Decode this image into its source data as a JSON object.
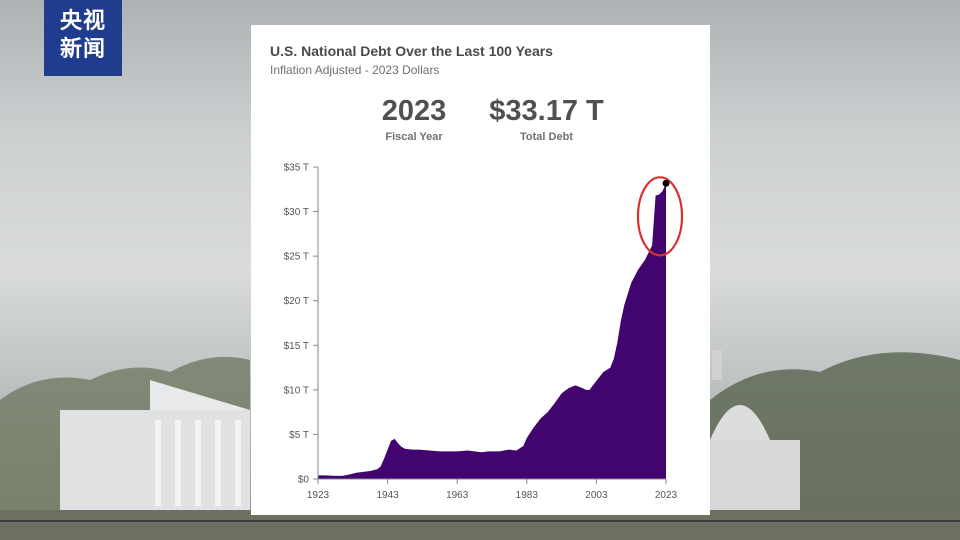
{
  "logo": {
    "line1": "央视",
    "line2": "新闻"
  },
  "card": {
    "title": "U.S. National Debt Over the Last 100 Years",
    "subtitle": "Inflation Adjusted - 2023 Dollars",
    "stats": [
      {
        "value": "2023",
        "label": "Fiscal Year"
      },
      {
        "value": "$33.17 T",
        "label": "Total Debt"
      }
    ]
  },
  "colors": {
    "area": "#42046e",
    "highlight": "#d93030",
    "logo_bg": "#1f3c8f"
  },
  "chart_data": {
    "type": "area",
    "title": "U.S. National Debt Over the Last 100 Years",
    "subtitle": "Inflation Adjusted - 2023 Dollars",
    "xlabel": "",
    "ylabel": "",
    "xlim": [
      1923,
      2023
    ],
    "ylim": [
      0,
      35
    ],
    "x_ticks": [
      1923,
      1943,
      1963,
      1983,
      2003,
      2023
    ],
    "y_ticks": [
      {
        "value": 0,
        "label": "$0"
      },
      {
        "value": 5,
        "label": "$5 T"
      },
      {
        "value": 10,
        "label": "$10 T"
      },
      {
        "value": 15,
        "label": "$15 T"
      },
      {
        "value": 20,
        "label": "$20 T"
      },
      {
        "value": 25,
        "label": "$25 T"
      },
      {
        "value": 30,
        "label": "$30 T"
      },
      {
        "value": 35,
        "label": "$35 T"
      }
    ],
    "series": [
      {
        "name": "Total Debt (trillions, 2023 dollars)",
        "x": [
          1923,
          1925,
          1928,
          1930,
          1932,
          1934,
          1936,
          1938,
          1940,
          1941,
          1942,
          1943,
          1944,
          1945,
          1946,
          1947,
          1948,
          1950,
          1952,
          1955,
          1958,
          1960,
          1963,
          1966,
          1968,
          1970,
          1972,
          1975,
          1978,
          1980,
          1982,
          1983,
          1985,
          1987,
          1989,
          1991,
          1993,
          1995,
          1997,
          1999,
          2000,
          2001,
          2003,
          2005,
          2007,
          2008,
          2009,
          2010,
          2011,
          2013,
          2015,
          2017,
          2019,
          2020,
          2021,
          2022,
          2023
        ],
        "values": [
          0.4,
          0.4,
          0.35,
          0.35,
          0.5,
          0.7,
          0.8,
          0.9,
          1.1,
          1.4,
          2.3,
          3.3,
          4.3,
          4.5,
          4.0,
          3.6,
          3.4,
          3.3,
          3.3,
          3.2,
          3.1,
          3.1,
          3.1,
          3.2,
          3.1,
          3.0,
          3.1,
          3.1,
          3.3,
          3.2,
          3.7,
          4.6,
          5.8,
          6.8,
          7.5,
          8.5,
          9.6,
          10.2,
          10.5,
          10.2,
          10.0,
          10.0,
          11.0,
          12.0,
          12.5,
          13.5,
          15.3,
          17.7,
          19.5,
          22.0,
          23.5,
          24.6,
          26.2,
          31.8,
          31.9,
          32.3,
          33.17
        ]
      }
    ],
    "highlight": {
      "x": 2023,
      "value": 33.17,
      "marker": "dot",
      "annotation": "circled"
    }
  }
}
